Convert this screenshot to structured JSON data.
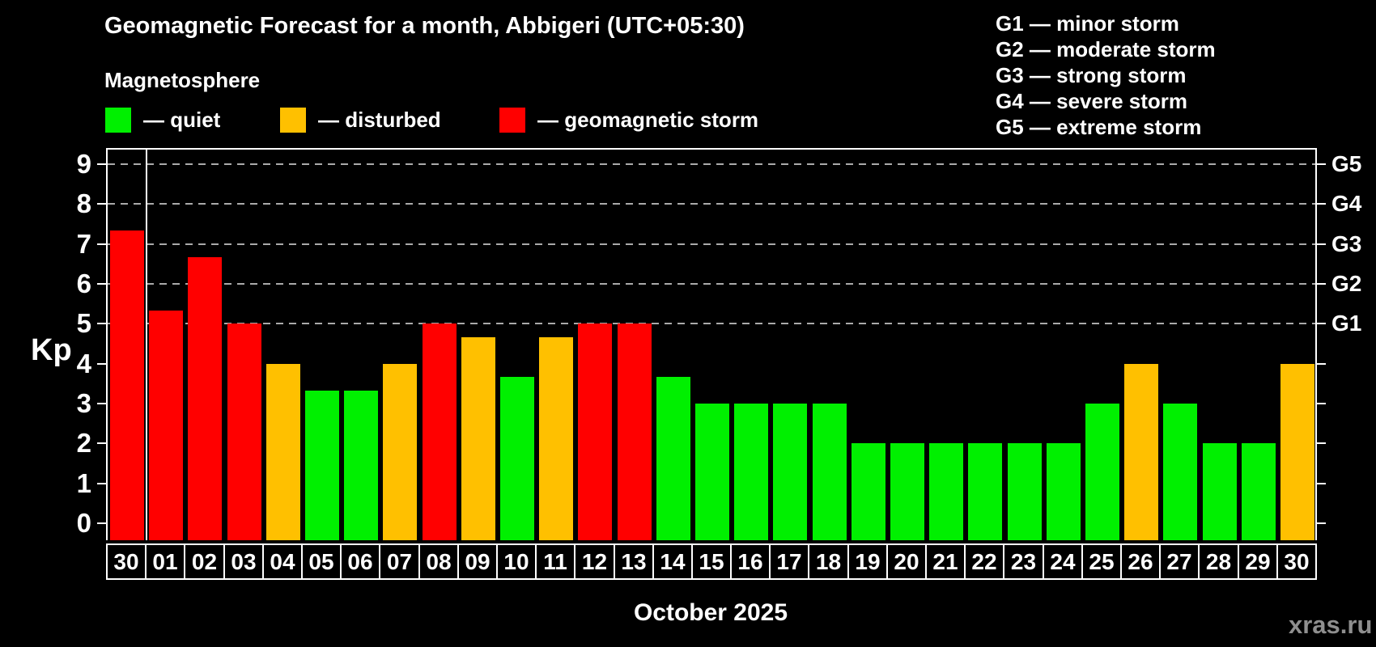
{
  "header": {
    "title": "Geomagnetic Forecast for a month, Abbigeri (UTC+05:30)",
    "subtitle": "Magnetosphere"
  },
  "legend": {
    "quiet": "— quiet",
    "disturbed": "— disturbed",
    "storm": "— geomagnetic storm"
  },
  "storm_scale": {
    "lines": [
      "G1 — minor storm",
      "G2 — moderate storm",
      "G3 — strong storm",
      "G4 — severe storm",
      "G5 — extreme storm"
    ]
  },
  "footer": {
    "watermark": "xras.ru"
  },
  "chart_data": {
    "type": "bar",
    "title": "Geomagnetic Forecast for a month, Abbigeri (UTC+05:30)",
    "ylabel": "Kp",
    "xlabel": "October 2025",
    "ylim": [
      0,
      9
    ],
    "y_ticks": [
      0,
      1,
      2,
      3,
      4,
      5,
      6,
      7,
      8,
      9
    ],
    "gridlines_at": [
      5,
      6,
      7,
      8,
      9
    ],
    "grid_style": "dashed horizontal lines at storm thresholds",
    "legend_position": "top-left",
    "right_axis_labels": [
      {
        "label": "G1",
        "kp": 5
      },
      {
        "label": "G2",
        "kp": 6
      },
      {
        "label": "G3",
        "kp": 7
      },
      {
        "label": "G4",
        "kp": 8
      },
      {
        "label": "G5",
        "kp": 9
      }
    ],
    "month_separator_after_index": 0,
    "colors": {
      "quiet": "#00f000",
      "disturbed": "#ffc000",
      "storm": "#ff0000",
      "axis": "#ffffff",
      "grid": "#aaaaaa",
      "background": "#000000",
      "watermark": "#8f8f8f"
    },
    "bars": [
      {
        "day": "30",
        "kp": 7.33,
        "level": "storm"
      },
      {
        "day": "01",
        "kp": 5.33,
        "level": "storm"
      },
      {
        "day": "02",
        "kp": 6.67,
        "level": "storm"
      },
      {
        "day": "03",
        "kp": 5.0,
        "level": "storm"
      },
      {
        "day": "04",
        "kp": 4.0,
        "level": "disturbed"
      },
      {
        "day": "05",
        "kp": 3.33,
        "level": "quiet"
      },
      {
        "day": "06",
        "kp": 3.33,
        "level": "quiet"
      },
      {
        "day": "07",
        "kp": 4.0,
        "level": "disturbed"
      },
      {
        "day": "08",
        "kp": 5.0,
        "level": "storm"
      },
      {
        "day": "09",
        "kp": 4.67,
        "level": "disturbed"
      },
      {
        "day": "10",
        "kp": 3.67,
        "level": "quiet"
      },
      {
        "day": "11",
        "kp": 4.67,
        "level": "disturbed"
      },
      {
        "day": "12",
        "kp": 5.0,
        "level": "storm"
      },
      {
        "day": "13",
        "kp": 5.0,
        "level": "storm"
      },
      {
        "day": "14",
        "kp": 3.67,
        "level": "quiet"
      },
      {
        "day": "15",
        "kp": 3.0,
        "level": "quiet"
      },
      {
        "day": "16",
        "kp": 3.0,
        "level": "quiet"
      },
      {
        "day": "17",
        "kp": 3.0,
        "level": "quiet"
      },
      {
        "day": "18",
        "kp": 3.0,
        "level": "quiet"
      },
      {
        "day": "19",
        "kp": 2.0,
        "level": "quiet"
      },
      {
        "day": "20",
        "kp": 2.0,
        "level": "quiet"
      },
      {
        "day": "21",
        "kp": 2.0,
        "level": "quiet"
      },
      {
        "day": "22",
        "kp": 2.0,
        "level": "quiet"
      },
      {
        "day": "23",
        "kp": 2.0,
        "level": "quiet"
      },
      {
        "day": "24",
        "kp": 2.0,
        "level": "quiet"
      },
      {
        "day": "25",
        "kp": 3.0,
        "level": "quiet"
      },
      {
        "day": "26",
        "kp": 4.0,
        "level": "disturbed"
      },
      {
        "day": "27",
        "kp": 3.0,
        "level": "quiet"
      },
      {
        "day": "28",
        "kp": 2.0,
        "level": "quiet"
      },
      {
        "day": "29",
        "kp": 2.0,
        "level": "quiet"
      },
      {
        "day": "30",
        "kp": 4.0,
        "level": "disturbed"
      }
    ]
  }
}
